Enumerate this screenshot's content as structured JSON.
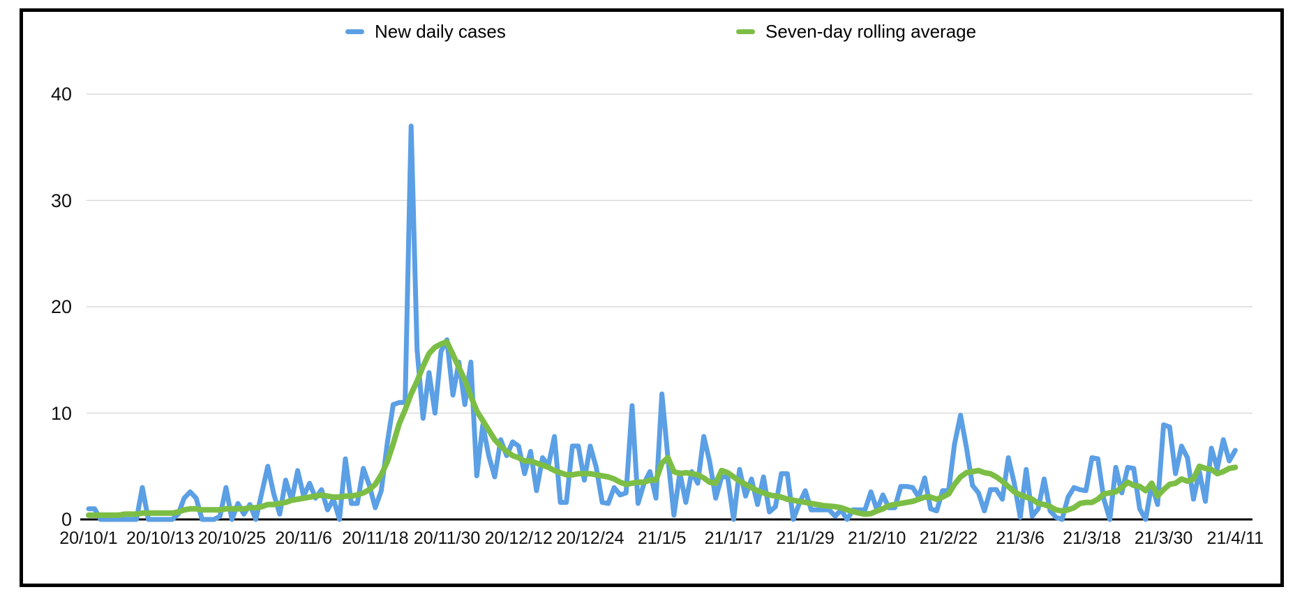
{
  "chart_data": {
    "type": "line",
    "title": "",
    "legend_position": "top",
    "grid": true,
    "ylim": [
      0,
      45
    ],
    "y_ticks": [
      0,
      10,
      20,
      30,
      40
    ],
    "x_tick_labels": [
      "20/10/1",
      "20/10/13",
      "20/10/25",
      "20/11/6",
      "20/11/18",
      "20/11/30",
      "20/12/12",
      "20/12/24",
      "21/1/5",
      "21/1/17",
      "21/1/29",
      "21/2/10",
      "21/2/22",
      "21/3/6",
      "21/3/18",
      "21/3/30",
      "21/4/11"
    ],
    "x_points_per_tick": 12,
    "x_total_points": 193,
    "axis_baseline_color": "#000000",
    "gridline_color": "#d9d9d9",
    "series": [
      {
        "name": "New daily cases",
        "color": "#5B9FE5",
        "values": [
          1,
          1,
          0,
          0,
          0,
          0,
          0,
          0,
          0,
          3,
          0,
          0,
          0,
          0,
          0,
          0.5,
          2,
          2.6,
          2,
          0,
          0,
          0,
          0.3,
          3,
          0,
          1.5,
          0.5,
          1.4,
          0,
          2.5,
          5,
          2.4,
          0.5,
          3.7,
          1.8,
          4.6,
          2.2,
          3.4,
          2,
          2.8,
          0.9,
          1.9,
          0,
          5.7,
          1.5,
          1.5,
          4.8,
          3.2,
          1.1,
          2.7,
          7.1,
          10.8,
          11,
          11,
          37,
          16,
          9.5,
          13.8,
          10,
          15.8,
          16.9,
          11.7,
          14.8,
          10.8,
          14.8,
          4.1,
          8.9,
          6,
          4,
          7.5,
          6,
          7.3,
          6.9,
          4.3,
          6.4,
          2.7,
          5.8,
          5.1,
          7.8,
          1.6,
          1.6,
          6.9,
          6.9,
          3.7,
          6.9,
          4.9,
          1.6,
          1.5,
          3,
          2.3,
          2.5,
          10.7,
          1.5,
          3.4,
          4.5,
          2,
          11.8,
          5.8,
          0.4,
          4.4,
          1.6,
          4.5,
          3.4,
          7.8,
          5.4,
          2,
          4,
          4,
          0,
          4.7,
          2.2,
          3.8,
          1.4,
          4,
          0.7,
          1.2,
          4.3,
          4.3,
          0,
          1.5,
          2.7,
          0.9,
          0.9,
          0.9,
          0.9,
          0.3,
          0.9,
          0,
          0.9,
          0.9,
          0.9,
          2.6,
          0.9,
          2.3,
          1.1,
          1.1,
          3.1,
          3.1,
          3,
          2.1,
          3.9,
          1,
          0.8,
          2.7,
          2.7,
          7.1,
          9.8,
          6.7,
          3.2,
          2.5,
          0.8,
          2.8,
          2.8,
          1.9,
          5.8,
          3.4,
          0.2,
          4.7,
          0.3,
          1,
          3.8,
          0.8,
          0.2,
          0,
          2.1,
          3,
          2.8,
          2.7,
          5.8,
          5.7,
          1.9,
          0,
          4.9,
          2.5,
          4.9,
          4.8,
          1,
          0,
          3.3,
          1.4,
          8.9,
          8.7,
          4.3,
          6.9,
          5.8,
          1.9,
          4.5,
          1.7,
          6.7,
          4.8,
          7.5,
          5.5,
          6.5
        ]
      },
      {
        "name": "Seven-day rolling average",
        "color": "#7CBE45",
        "values": [
          0.4,
          0.4,
          0.4,
          0.4,
          0.4,
          0.4,
          0.5,
          0.5,
          0.5,
          0.6,
          0.6,
          0.6,
          0.6,
          0.6,
          0.6,
          0.7,
          0.9,
          1,
          1,
          0.9,
          0.9,
          0.9,
          0.9,
          1,
          1,
          1,
          1,
          1.1,
          1.1,
          1.2,
          1.4,
          1.4,
          1.5,
          1.6,
          1.8,
          1.9,
          2,
          2.1,
          2.2,
          2.3,
          2.2,
          2.1,
          2.1,
          2.2,
          2.2,
          2.3,
          2.5,
          2.8,
          3.3,
          4.2,
          5.4,
          7.1,
          9,
          10.3,
          11.8,
          13,
          14.4,
          15.6,
          16.2,
          16.5,
          16.7,
          15.5,
          14.3,
          13.1,
          11.6,
          10.2,
          9.3,
          8.4,
          7.5,
          6.9,
          6.4,
          6,
          5.8,
          5.5,
          5.5,
          5.3,
          5.1,
          4.9,
          4.6,
          4.4,
          4.2,
          4.2,
          4.3,
          4.3,
          4.3,
          4.2,
          4.1,
          4,
          3.8,
          3.5,
          3.3,
          3.4,
          3.5,
          3.5,
          3.7,
          3.7,
          5.3,
          5.8,
          4.5,
          4.3,
          4.4,
          4.3,
          4.2,
          3.9,
          3.5,
          3.4,
          4.6,
          4.4,
          4,
          3.6,
          3.3,
          3,
          2.7,
          2.5,
          2.3,
          2.2,
          2.1,
          1.9,
          1.8,
          1.7,
          1.6,
          1.5,
          1.4,
          1.3,
          1.25,
          1.2,
          1.1,
          0.9,
          0.75,
          0.6,
          0.5,
          0.55,
          0.8,
          1,
          1.3,
          1.4,
          1.5,
          1.6,
          1.7,
          1.9,
          2.1,
          2.1,
          1.9,
          2.1,
          2.4,
          3.3,
          4,
          4.4,
          4.5,
          4.6,
          4.4,
          4.3,
          4,
          3.6,
          3.1,
          2.6,
          2.3,
          2.1,
          1.9,
          1.5,
          1.4,
          1.2,
          0.9,
          0.8,
          0.9,
          1.1,
          1.5,
          1.6,
          1.6,
          1.9,
          2.4,
          2.5,
          2.6,
          3,
          3.5,
          3.2,
          3.1,
          2.7,
          3.4,
          2.2,
          2.8,
          3.3,
          3.4,
          3.8,
          3.6,
          3.8,
          5,
          4.8,
          4.7,
          4.3,
          4.5,
          4.8,
          4.9
        ]
      }
    ]
  }
}
